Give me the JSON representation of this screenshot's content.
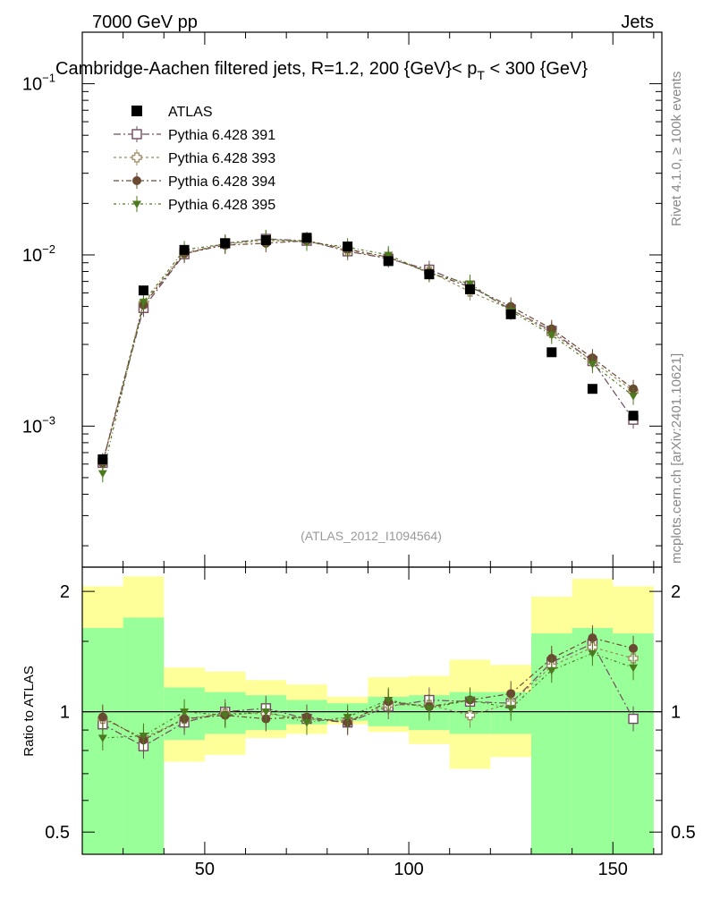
{
  "header": {
    "left": "7000 GeV pp",
    "right": "Jets",
    "title": "Cambridge-Aachen filtered jets, R=1.2, 200 {GeV}< p",
    "title_sub": "T",
    "title_tail": " < 300 {GeV}",
    "rivet_label": "Rivet 4.1.0, ≥ 100k events",
    "mcplots_label": "mcplots.cern.ch [arXiv:2401.10621]",
    "analysis_id": "(ATLAS_2012_I1094564)"
  },
  "ratio_panel": {
    "ylabel": "Ratio to ATLAS",
    "ytick_labels": [
      "0.5",
      "1",
      "2"
    ]
  },
  "axis": {
    "main_ytick_labels": [
      {
        "base": "10",
        "exp": "−1"
      },
      {
        "base": "10",
        "exp": "−2"
      },
      {
        "base": "10",
        "exp": "−3"
      }
    ],
    "xtick_labels": [
      "50",
      "100",
      "150"
    ]
  },
  "chart_data": {
    "type": "scatter",
    "xlim": [
      20,
      162
    ],
    "ylim_log": [
      0.00015,
      0.2
    ],
    "ratio_ylim": [
      0.44,
      2.3
    ],
    "bin_edges": [
      20,
      30,
      40,
      50,
      60,
      70,
      80,
      90,
      100,
      110,
      120,
      130,
      140,
      150,
      160
    ],
    "x": [
      25,
      35,
      45,
      55,
      65,
      75,
      85,
      95,
      105,
      115,
      125,
      135,
      145,
      155
    ],
    "data": {
      "name": "ATLAS",
      "color": "#000000",
      "values": [
        0.00064,
        0.0062,
        0.0107,
        0.0117,
        0.0122,
        0.0126,
        0.0112,
        0.0092,
        0.0077,
        0.0063,
        0.0045,
        0.0027,
        0.00165,
        0.00115
      ]
    },
    "band_stat_lo": [
      0.3,
      0.3,
      0.85,
      0.88,
      0.9,
      0.93,
      0.95,
      0.92,
      0.9,
      0.88,
      0.88,
      0.3,
      0.3,
      0.3
    ],
    "band_stat_hi": [
      1.62,
      1.72,
      1.15,
      1.12,
      1.1,
      1.07,
      1.05,
      1.09,
      1.1,
      1.12,
      1.12,
      1.57,
      1.62,
      1.57
    ],
    "band_tot_lo": [
      0.42,
      0.3,
      0.75,
      0.78,
      0.86,
      0.88,
      0.93,
      0.89,
      0.83,
      0.72,
      0.77,
      0.52,
      0.3,
      0.42
    ],
    "band_tot_hi": [
      2.06,
      2.18,
      1.29,
      1.26,
      1.2,
      1.17,
      1.09,
      1.22,
      1.23,
      1.35,
      1.31,
      1.94,
      2.15,
      2.06
    ],
    "series": [
      {
        "name": "Pythia 6.428 391",
        "color": "#714b61",
        "marker": "open-square",
        "dash": "8,3,2,3",
        "values": [
          0.00061,
          0.0049,
          0.0101,
          0.0117,
          0.0124,
          0.0121,
          0.0105,
          0.0095,
          0.0082,
          0.0066,
          0.0048,
          0.0036,
          0.0024,
          0.00109
        ],
        "ratio": [
          0.93,
          0.82,
          0.94,
          1.0,
          1.02,
          0.96,
          0.94,
          1.03,
          1.07,
          1.06,
          1.05,
          1.33,
          1.48,
          0.96
        ]
      },
      {
        "name": "Pythia 6.428 393",
        "color": "#9a8a5e",
        "marker": "open-cross",
        "dash": "3,3",
        "values": [
          0.00062,
          0.0052,
          0.0103,
          0.0116,
          0.0121,
          0.0121,
          0.0106,
          0.0096,
          0.008,
          0.0061,
          0.0048,
          0.0035,
          0.0024,
          0.0016
        ],
        "ratio": [
          0.96,
          0.86,
          0.96,
          0.99,
          0.99,
          0.96,
          0.95,
          1.04,
          1.04,
          0.98,
          1.05,
          1.3,
          1.45,
          1.36
        ]
      },
      {
        "name": "Pythia 6.428 394",
        "color": "#6b4a33",
        "marker": "filled-circle",
        "dash": "6,3,2,3",
        "values": [
          0.00061,
          0.0051,
          0.0102,
          0.0114,
          0.0117,
          0.0121,
          0.0108,
          0.0097,
          0.0079,
          0.0065,
          0.005,
          0.0037,
          0.0025,
          0.00165
        ],
        "ratio": [
          0.97,
          0.85,
          0.96,
          0.98,
          0.96,
          0.97,
          0.94,
          1.06,
          1.03,
          1.07,
          1.11,
          1.36,
          1.53,
          1.44
        ]
      },
      {
        "name": "Pythia 6.428 395",
        "color": "#4c7a1e",
        "marker": "filled-triangle",
        "dash": "3,3,1,3",
        "values": [
          0.00053,
          0.0053,
          0.0107,
          0.0116,
          0.0124,
          0.0119,
          0.0111,
          0.01,
          0.0078,
          0.0068,
          0.0047,
          0.0034,
          0.0023,
          0.0015
        ],
        "ratio": [
          0.86,
          0.87,
          1.0,
          0.98,
          1.0,
          0.94,
          0.97,
          1.07,
          1.02,
          1.07,
          1.02,
          1.27,
          1.4,
          1.29
        ]
      }
    ]
  }
}
